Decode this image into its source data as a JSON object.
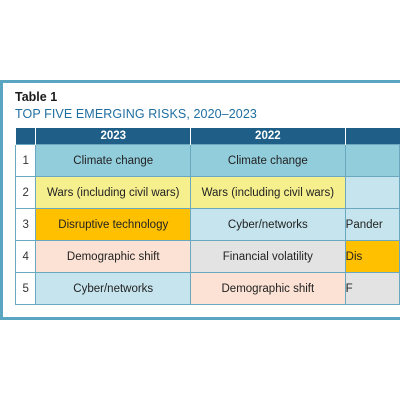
{
  "table": {
    "caption": "Table 1",
    "title": "TOP FIVE EMERGING RISKS, 2020–2023",
    "headers": [
      "",
      "2023",
      "2022",
      ""
    ],
    "rows": [
      {
        "rank": "1",
        "cells": [
          "Climate change",
          "Climate change",
          ""
        ],
        "classes": [
          "c-climate",
          "c-climate",
          "c-climate"
        ]
      },
      {
        "rank": "2",
        "cells": [
          "Wars (including civil wars)",
          "Wars (including civil wars)",
          ""
        ],
        "classes": [
          "c-wars",
          "c-wars",
          "c-cyber"
        ]
      },
      {
        "rank": "3",
        "cells": [
          "Disruptive technology",
          "Cyber/networks",
          "Pander"
        ],
        "classes": [
          "c-tech",
          "c-cyber",
          "c-cyber"
        ]
      },
      {
        "rank": "4",
        "cells": [
          "Demographic shift",
          "Financial volatility",
          "Dis"
        ],
        "classes": [
          "c-demo",
          "c-fin",
          "c-tech"
        ]
      },
      {
        "rank": "5",
        "cells": [
          "Cyber/networks",
          "Demographic shift",
          "F"
        ],
        "classes": [
          "c-cyber",
          "c-demo",
          "c-fin"
        ]
      }
    ]
  },
  "colors": {
    "border": "#5aa6c0",
    "header": "#1f5f87",
    "climate": "#92cddc",
    "wars": "#f6ef8e",
    "disruptive_technology": "#ffc000",
    "demographic_shift": "#fbe2d5",
    "cyber_networks": "#c5e4ee",
    "financial_volatility": "#e3e3e3"
  }
}
